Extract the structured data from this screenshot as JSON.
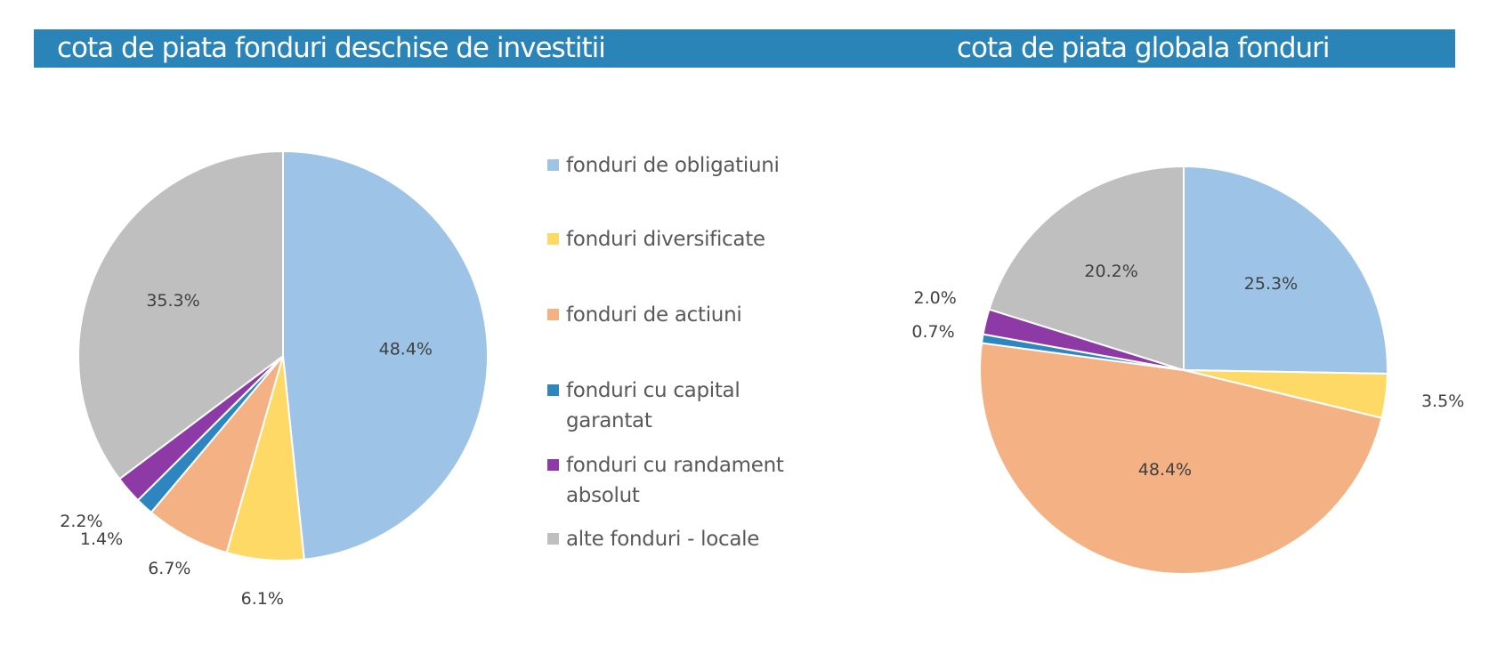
{
  "headers": {
    "left_title": "cota de piata fonduri deschise de investitii",
    "right_title": "cota de piata globala fonduri",
    "bar_color": "#2a84b8"
  },
  "legend": [
    {
      "label": "fonduri de obligatiuni",
      "color": "#9dc3e6"
    },
    {
      "label": "fonduri diversificate",
      "color": "#ffd966"
    },
    {
      "label": "fonduri de actiuni",
      "color": "#f4b183"
    },
    {
      "label": "fonduri cu capital garantat",
      "color": "#2e86c1"
    },
    {
      "label": "fonduri cu randament absolut",
      "color": "#8e3aa6"
    },
    {
      "label": "alte fonduri - locale",
      "color": "#bfbfbf"
    }
  ],
  "chart_data": [
    {
      "type": "pie",
      "title": "cota de piata fonduri deschise de investitii",
      "start_angle_deg": 0,
      "direction": "clockwise",
      "slices": [
        {
          "label": "fonduri de obligatiuni",
          "value": 48.4,
          "display": "48.4%",
          "color": "#9dc3e6"
        },
        {
          "label": "fonduri diversificate",
          "value": 6.1,
          "display": "6.1%",
          "color": "#ffd966"
        },
        {
          "label": "fonduri de actiuni",
          "value": 6.7,
          "display": "6.7%",
          "color": "#f4b183"
        },
        {
          "label": "fonduri cu capital garantat",
          "value": 1.4,
          "display": "1.4%",
          "color": "#2e86c1"
        },
        {
          "label": "fonduri cu randament absolut",
          "value": 2.2,
          "display": "2.2%",
          "color": "#8e3aa6"
        },
        {
          "label": "alte fonduri - locale",
          "value": 35.3,
          "display": "35.3%",
          "color": "#bfbfbf"
        }
      ]
    },
    {
      "type": "pie",
      "title": "cota de piata globala fonduri",
      "start_angle_deg": 0,
      "direction": "clockwise",
      "slices": [
        {
          "label": "fonduri de obligatiuni",
          "value": 25.3,
          "display": "25.3%",
          "color": "#9dc3e6"
        },
        {
          "label": "fonduri diversificate",
          "value": 3.5,
          "display": "3.5%",
          "color": "#ffd966"
        },
        {
          "label": "fonduri de actiuni",
          "value": 48.4,
          "display": "48.4%",
          "color": "#f4b183"
        },
        {
          "label": "fonduri cu capital garantat",
          "value": 0.7,
          "display": "0.7%",
          "color": "#2e86c1"
        },
        {
          "label": "fonduri cu randament absolut",
          "value": 2.0,
          "display": "2.0%",
          "color": "#8e3aa6"
        },
        {
          "label": "alte fonduri - locale",
          "value": 20.2,
          "display": "20.2%",
          "color": "#bfbfbf"
        }
      ]
    }
  ]
}
